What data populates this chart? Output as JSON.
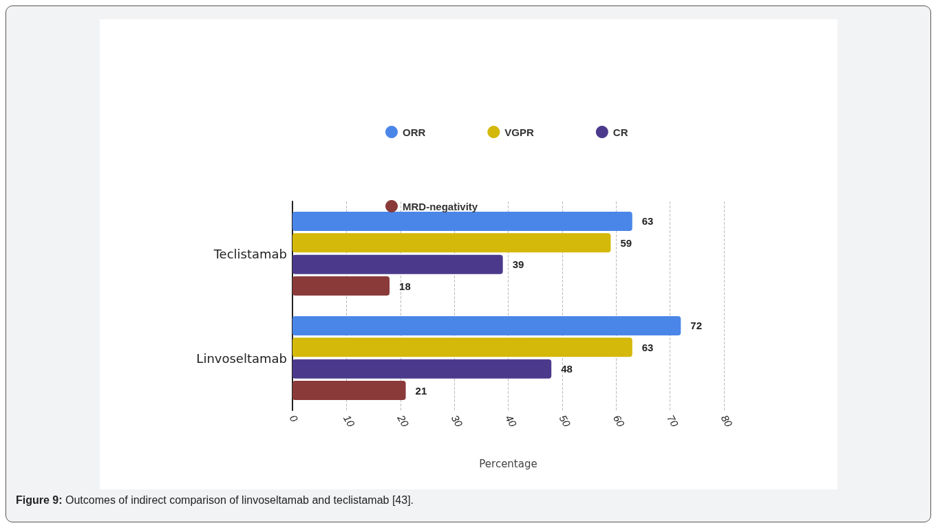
{
  "chart_data": {
    "type": "bar",
    "orientation": "horizontal",
    "categories": [
      "Teclistamab",
      "Linvoseltamab"
    ],
    "series": [
      {
        "name": "ORR",
        "color": "#4a86e8",
        "values": [
          63,
          72
        ]
      },
      {
        "name": "VGPR",
        "color": "#d4b80a",
        "values": [
          59,
          63
        ]
      },
      {
        "name": "CR",
        "color": "#4b3a8c",
        "values": [
          39,
          48
        ]
      },
      {
        "name": "MRD-negativity",
        "color": "#8b3a3a",
        "values": [
          18,
          21
        ]
      }
    ],
    "xlim": [
      0,
      80
    ],
    "xticks": [
      0,
      10,
      20,
      30,
      40,
      50,
      60,
      70,
      80
    ],
    "xlabel": "Percentage",
    "grid": "x",
    "legend": "top",
    "data_labels": true,
    "annotations": [
      "Figure 9: Outcomes of indirect comparison of linvoseltamab and teclistamab [43]."
    ]
  }
}
